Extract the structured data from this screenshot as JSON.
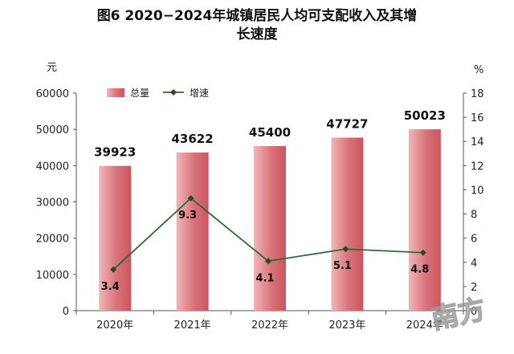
{
  "title": {
    "line1": "图6  2020−2024年城镇居民人均可支配收入及其增",
    "line2": "长速度"
  },
  "watermark": "南方",
  "chart_data": {
    "type": "bar",
    "categories": [
      "2020年",
      "2021年",
      "2022年",
      "2023年",
      "2024年"
    ],
    "series": [
      {
        "name": "总量",
        "type": "bar",
        "axis": "left",
        "values": [
          39923,
          43622,
          45400,
          47727,
          50023
        ],
        "labels": [
          "39923",
          "43622",
          "45400",
          "47727",
          "50023"
        ]
      },
      {
        "name": "增速",
        "type": "line",
        "axis": "right",
        "values": [
          3.4,
          9.3,
          4.1,
          5.1,
          4.8
        ],
        "labels": [
          "3.4",
          "9.3",
          "4.1",
          "5.1",
          "4.8"
        ]
      }
    ],
    "y_left": {
      "unit": "元",
      "ylim": [
        0,
        60000
      ],
      "ticks": [
        "0",
        "10000",
        "20000",
        "30000",
        "40000",
        "50000",
        "60000"
      ]
    },
    "y_right": {
      "unit": "%",
      "ylim": [
        0,
        18
      ],
      "ticks": [
        "0",
        "2",
        "4",
        "6",
        "8",
        "10",
        "12",
        "14",
        "16",
        "18"
      ]
    },
    "legend": {
      "placement": "top-left"
    },
    "grid": false,
    "colors": {
      "bar_light": "#f0b7b7",
      "bar_dark": "#c9555f",
      "line": "#2f6b35",
      "marker": "#2b4a2d"
    }
  }
}
